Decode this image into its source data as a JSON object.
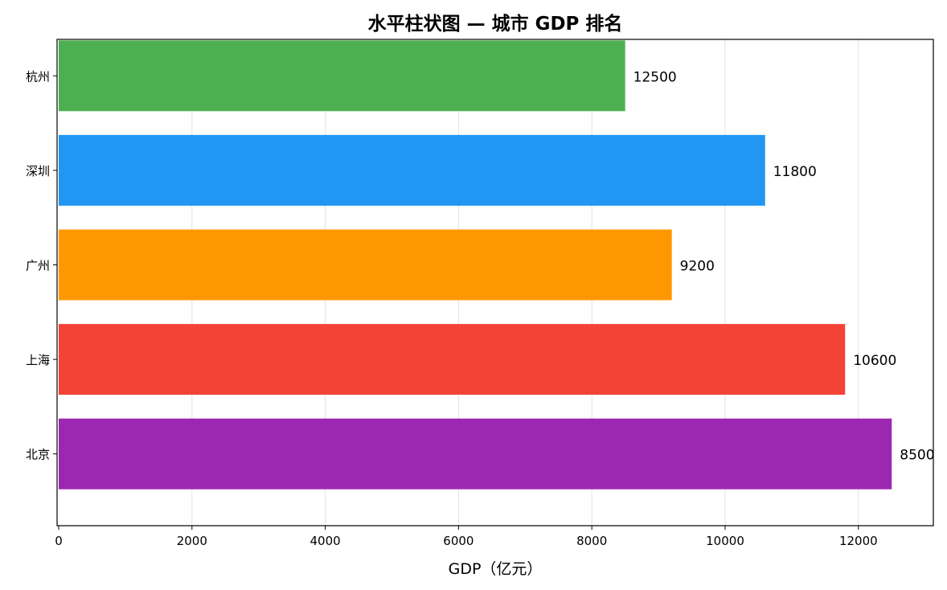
{
  "chart_data": {
    "type": "bar",
    "orientation": "horizontal",
    "title": "水平柱状图 — 城市 GDP 排名",
    "xlabel": "GDP（亿元）",
    "ylabel": "",
    "xlim": [
      0,
      13100
    ],
    "xticks": [
      0,
      2000,
      4000,
      6000,
      8000,
      10000,
      12000
    ],
    "grid": {
      "x": true,
      "y": false
    },
    "categories": [
      "北京",
      "上海",
      "广州",
      "深圳",
      "杭州"
    ],
    "values": [
      12500,
      11800,
      9200,
      10600,
      8500
    ],
    "data_labels": [
      "8500",
      "10600",
      "9200",
      "11800",
      "12500"
    ],
    "colors": [
      "#9c27b0",
      "#f44336",
      "#ff9800",
      "#2196f3",
      "#4caf50"
    ]
  }
}
